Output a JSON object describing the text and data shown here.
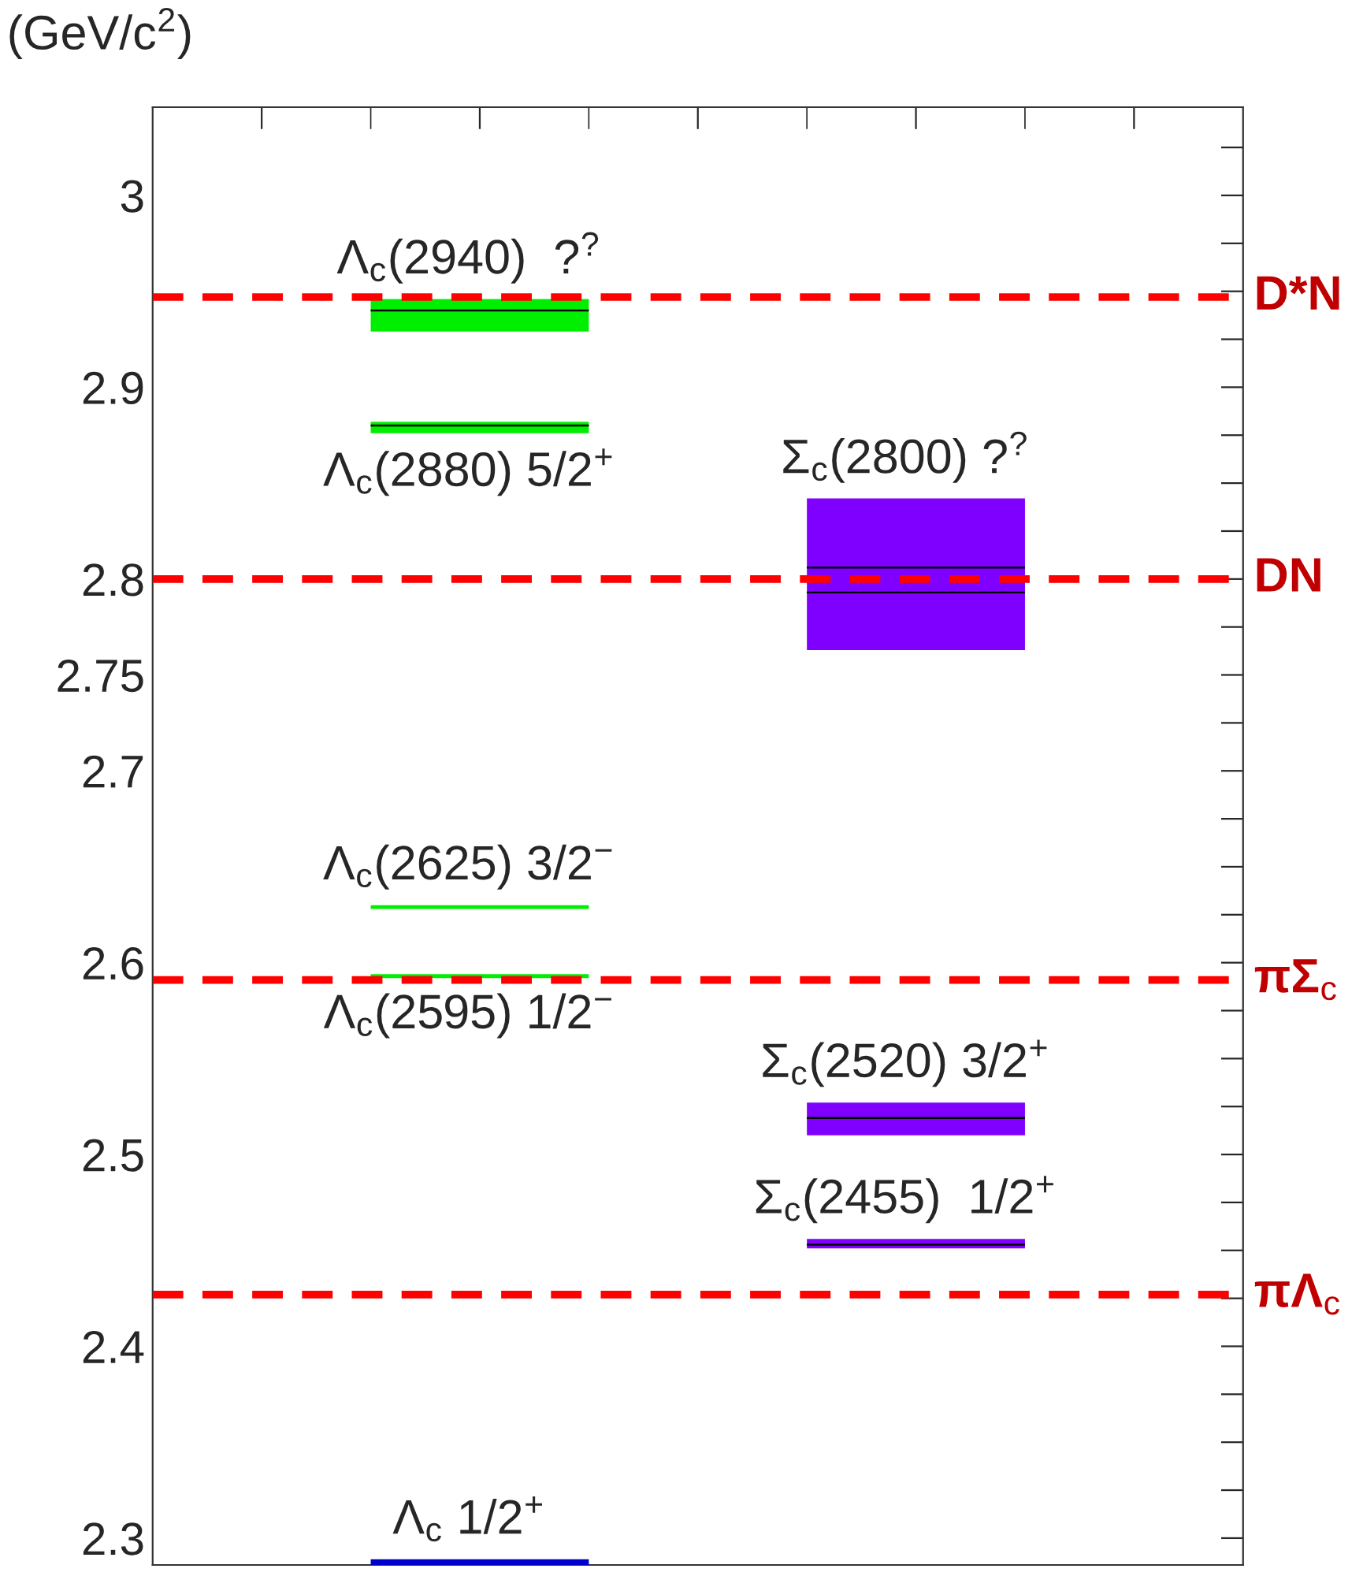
{
  "chart_data": {
    "type": "bar",
    "ylabel": "(GeV/c$^{2}$)",
    "categories": [
      null,
      null,
      null,
      null,
      null
    ],
    "ylim": [
      2.286,
      3.046
    ],
    "yticks": [
      {
        "value": 2.3,
        "label": "2.3"
      },
      {
        "value": 2.325,
        "label": null
      },
      {
        "value": 2.35,
        "label": null
      },
      {
        "value": 2.375,
        "label": null
      },
      {
        "value": 2.4,
        "label": "2.4"
      },
      {
        "value": 2.425,
        "label": null
      },
      {
        "value": 2.45,
        "label": null
      },
      {
        "value": 2.475,
        "label": null
      },
      {
        "value": 2.5,
        "label": "2.5"
      },
      {
        "value": 2.525,
        "label": null
      },
      {
        "value": 2.55,
        "label": null
      },
      {
        "value": 2.575,
        "label": null
      },
      {
        "value": 2.6,
        "label": "2.6"
      },
      {
        "value": 2.625,
        "label": null
      },
      {
        "value": 2.65,
        "label": null
      },
      {
        "value": 2.675,
        "label": null
      },
      {
        "value": 2.7,
        "label": "2.7"
      },
      {
        "value": 2.725,
        "label": null
      },
      {
        "value": 2.75,
        "label": "2.75"
      },
      {
        "value": 2.775,
        "label": null
      },
      {
        "value": 2.8,
        "label": "2.8"
      },
      {
        "value": 2.825,
        "label": null
      },
      {
        "value": 2.85,
        "label": null
      },
      {
        "value": 2.875,
        "label": null
      },
      {
        "value": 2.9,
        "label": "2.9"
      },
      {
        "value": 2.925,
        "label": null
      },
      {
        "value": 2.95,
        "label": null
      },
      {
        "value": 2.975,
        "label": null
      },
      {
        "value": 3.0,
        "label": "3"
      },
      {
        "value": 3.025,
        "label": null
      }
    ],
    "grid": false,
    "legend": false,
    "series": [
      {
        "name": "Λ$_{c}$ 1/2$^{+}$",
        "color": "#0000cc",
        "base": [
          null,
          2.286,
          null,
          null,
          null
        ],
        "values": [
          null,
          0.003,
          null,
          null,
          null
        ]
      },
      {
        "name": "Λ$_{c}$(2595) 1/2$^{−}$",
        "color": "#00ee00",
        "base": [
          null,
          2.592,
          null,
          null,
          null
        ],
        "values": [
          null,
          0.002,
          null,
          null,
          null
        ]
      },
      {
        "name": "Λ$_{c}$(2625) 3/2$^{−}$",
        "color": "#00ee00",
        "base": [
          null,
          2.628,
          null,
          null,
          null
        ],
        "values": [
          null,
          0.002,
          null,
          null,
          null
        ]
      },
      {
        "name": "Λ$_{c}$(2880) 5/2$^{+}$",
        "color": "#00ee00",
        "base": [
          null,
          2.876,
          null,
          null,
          null
        ],
        "values": [
          null,
          0.006,
          null,
          null,
          null
        ]
      },
      {
        "name": "Λ$_{c}$(2940)  ?$^{?}$",
        "color": "#00ee00",
        "base": [
          null,
          2.929,
          null,
          null,
          null
        ],
        "values": [
          null,
          0.017,
          null,
          null,
          null
        ]
      },
      {
        "name": "Σ$_{c}$(2455)  1/2$^{+}$",
        "color": "#7f00ff",
        "base": [
          null,
          null,
          null,
          2.451,
          null
        ],
        "values": [
          null,
          null,
          null,
          0.005,
          null
        ]
      },
      {
        "name": "Σ$_{c}$(2520) 3/2$^{+}$",
        "color": "#7f00ff",
        "base": [
          null,
          null,
          null,
          2.51,
          null
        ],
        "values": [
          null,
          null,
          null,
          0.017,
          null
        ]
      },
      {
        "name": "Σ$_{c}$(2800) ?$^{?}$",
        "color": "#7f00ff",
        "base": [
          null,
          null,
          null,
          2.763,
          null
        ],
        "values": [
          null,
          null,
          null,
          0.079,
          null
        ]
      },
      {
        "color": "#000000",
        "base": [
          null,
          2.9395,
          null,
          2.8055,
          null
        ],
        "values": [
          null,
          0.001,
          null,
          0.001,
          null
        ]
      },
      {
        "color": "#000000",
        "base": [
          null,
          2.8795,
          null,
          2.7925,
          null
        ],
        "values": [
          null,
          0.001,
          null,
          0.001,
          null
        ]
      },
      {
        "color": "#000000",
        "base": [
          null,
          null,
          null,
          2.5185,
          null
        ],
        "values": [
          null,
          null,
          null,
          0.001,
          null
        ]
      },
      {
        "color": "#000000",
        "base": [
          null,
          null,
          null,
          2.4525,
          null
        ],
        "values": [
          null,
          null,
          null,
          0.001,
          null
        ]
      }
    ],
    "ref_lines": [
      {
        "axis": "y",
        "value": 2.947,
        "label": "D*N",
        "color": "#ff0000",
        "line_style": "dashed"
      },
      {
        "axis": "y",
        "value": 2.8,
        "label": "DN",
        "color": "#ff0000",
        "line_style": "dashed"
      },
      {
        "axis": "y",
        "value": 2.591,
        "label": "πΣ$_{c}$",
        "color": "#ff0000",
        "line_style": "dashed"
      },
      {
        "axis": "y",
        "value": 2.427,
        "label": "πΛ$_{c}$",
        "color": "#ff0000",
        "line_style": "dashed"
      }
    ]
  }
}
